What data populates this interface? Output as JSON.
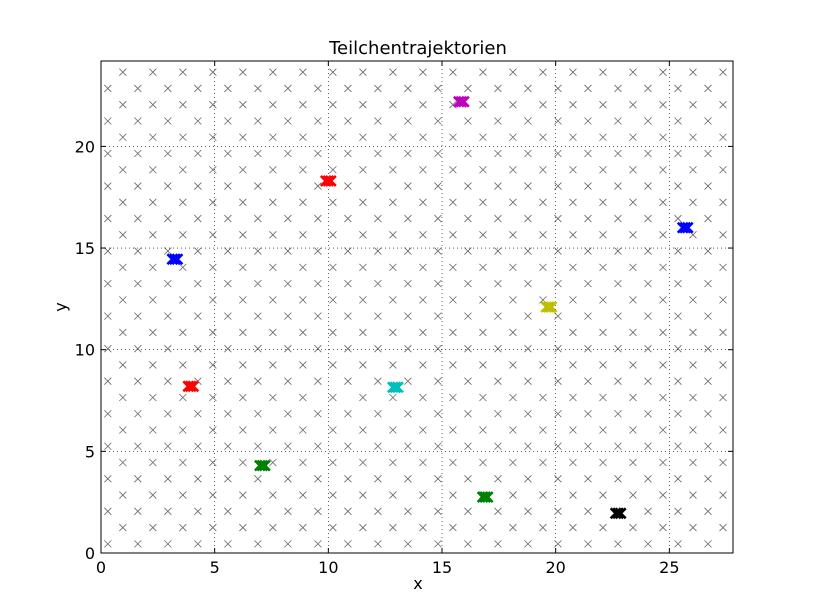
{
  "chart_data": {
    "type": "scatter",
    "title": "Teilchentrajektorien",
    "xlabel": "x",
    "ylabel": "y",
    "xlim": [
      0,
      27.8
    ],
    "ylim": [
      0,
      24.2
    ],
    "grid": true,
    "legend": "none",
    "xticks": [
      "0",
      "5",
      "10",
      "15",
      "20",
      "25"
    ],
    "yticks": [
      "0",
      "5",
      "10",
      "15",
      "20"
    ],
    "background_lattice": {
      "marker": "x",
      "color": "#666666",
      "row_spacing_y": 0.8,
      "col_spacing_x": 1.32,
      "even_row_x_start": 0.3,
      "odd_row_x_start": 0.96,
      "first_row_y": 0.45
    },
    "series": [
      {
        "color": "#ff0000",
        "points": [
          [
            10.0,
            18.3
          ],
          [
            3.95,
            8.2
          ]
        ]
      },
      {
        "color": "#0000ff",
        "points": [
          [
            3.25,
            14.45
          ],
          [
            25.7,
            16.0
          ]
        ]
      },
      {
        "color": "#bf00bf",
        "points": [
          [
            15.85,
            22.2
          ]
        ]
      },
      {
        "color": "#bfbf00",
        "points": [
          [
            19.7,
            12.1
          ]
        ]
      },
      {
        "color": "#00bfbf",
        "points": [
          [
            12.95,
            8.15
          ]
        ]
      },
      {
        "color": "#008000",
        "points": [
          [
            7.1,
            4.3
          ],
          [
            16.9,
            2.75
          ]
        ]
      },
      {
        "color": "#000000",
        "points": [
          [
            22.75,
            1.95
          ]
        ]
      }
    ]
  }
}
